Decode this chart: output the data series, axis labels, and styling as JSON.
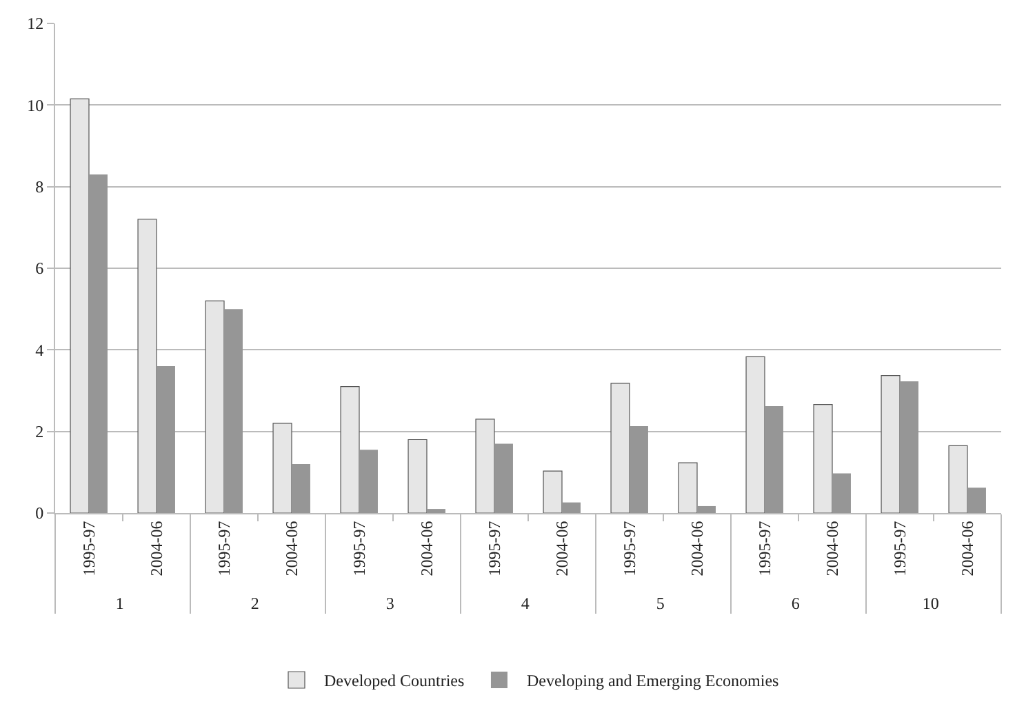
{
  "chart_data": {
    "type": "bar",
    "categories": [
      "1995-97",
      "2004-06",
      "1995-97",
      "2004-06",
      "1995-97",
      "2004-06",
      "1995-97",
      "2004-06",
      "1995-97",
      "2004-06",
      "1995-97",
      "2004-06",
      "1995-97",
      "2004-06"
    ],
    "annotations": [
      "1",
      "2",
      "3",
      "4",
      "5",
      "6",
      "10"
    ],
    "series": [
      {
        "name": "Developed Countries",
        "color": "#e6e6e6",
        "values": [
          10.15,
          7.2,
          5.2,
          2.2,
          3.1,
          1.8,
          2.3,
          1.03,
          3.18,
          1.23,
          3.83,
          2.66,
          3.37,
          1.65
        ]
      },
      {
        "name": "Developing and Emerging Economies",
        "color": "#969696",
        "values": [
          8.3,
          3.6,
          5.0,
          1.2,
          1.55,
          0.1,
          1.7,
          0.26,
          2.13,
          0.17,
          2.62,
          0.97,
          3.23,
          0.62
        ]
      }
    ],
    "ylim": [
      0,
      12
    ],
    "yticks": [
      0,
      2,
      4,
      6,
      8,
      10,
      12
    ],
    "grid": "y",
    "legend": "bottom"
  }
}
